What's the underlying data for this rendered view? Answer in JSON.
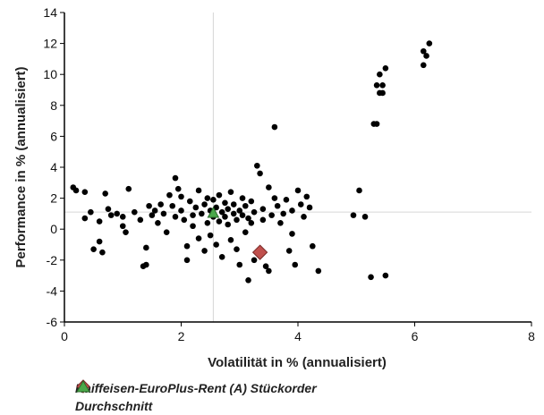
{
  "chart_data": {
    "type": "scatter",
    "xlabel": "Volatilität in % (annualisiert)",
    "ylabel": "Performance in % (annualisiert)",
    "xlim": [
      0,
      8
    ],
    "ylim": [
      -6,
      14
    ],
    "x_ticks": [
      0,
      2,
      4,
      6,
      8
    ],
    "y_ticks": [
      -6,
      -4,
      -2,
      0,
      2,
      4,
      6,
      8,
      10,
      12,
      14
    ],
    "reference_lines": {
      "x": 2.55,
      "y": 1.1
    },
    "colors": {
      "points": "#000000",
      "fund": "#c0504d",
      "average": "#4aa84a",
      "grid": "#d6d6d6"
    },
    "series": [
      {
        "name": "",
        "marker": "circle",
        "points": [
          [
            0.15,
            2.7
          ],
          [
            0.2,
            2.5
          ],
          [
            0.35,
            2.4
          ],
          [
            0.35,
            0.7
          ],
          [
            0.45,
            1.1
          ],
          [
            0.5,
            -1.3
          ],
          [
            0.6,
            -0.8
          ],
          [
            0.6,
            0.5
          ],
          [
            0.7,
            2.3
          ],
          [
            0.65,
            -1.5
          ],
          [
            0.75,
            1.3
          ],
          [
            0.8,
            0.9
          ],
          [
            0.9,
            1.0
          ],
          [
            1.0,
            0.8
          ],
          [
            1.0,
            0.2
          ],
          [
            1.05,
            -0.2
          ],
          [
            1.1,
            2.6
          ],
          [
            1.2,
            1.1
          ],
          [
            1.3,
            0.6
          ],
          [
            1.35,
            -2.4
          ],
          [
            1.4,
            -2.3
          ],
          [
            1.4,
            -1.2
          ],
          [
            1.45,
            1.5
          ],
          [
            1.5,
            0.9
          ],
          [
            1.55,
            1.2
          ],
          [
            1.6,
            0.4
          ],
          [
            1.65,
            1.6
          ],
          [
            1.7,
            1.0
          ],
          [
            1.75,
            -0.2
          ],
          [
            1.8,
            2.2
          ],
          [
            1.85,
            1.5
          ],
          [
            1.9,
            0.8
          ],
          [
            1.9,
            3.3
          ],
          [
            1.95,
            2.6
          ],
          [
            2.0,
            2.1
          ],
          [
            2.0,
            1.2
          ],
          [
            2.05,
            0.6
          ],
          [
            2.1,
            -1.1
          ],
          [
            2.1,
            -2.0
          ],
          [
            2.15,
            1.8
          ],
          [
            2.2,
            0.9
          ],
          [
            2.2,
            0.2
          ],
          [
            2.25,
            1.4
          ],
          [
            2.3,
            2.5
          ],
          [
            2.3,
            -0.6
          ],
          [
            2.35,
            1.0
          ],
          [
            2.4,
            1.6
          ],
          [
            2.4,
            -1.4
          ],
          [
            2.45,
            0.4
          ],
          [
            2.45,
            2.0
          ],
          [
            2.5,
            1.2
          ],
          [
            2.5,
            -0.4
          ],
          [
            2.55,
            0.8
          ],
          [
            2.55,
            1.9
          ],
          [
            2.6,
            1.4
          ],
          [
            2.6,
            -1.0
          ],
          [
            2.65,
            0.5
          ],
          [
            2.65,
            2.2
          ],
          [
            2.7,
            1.1
          ],
          [
            2.7,
            -1.8
          ],
          [
            2.75,
            0.8
          ],
          [
            2.75,
            1.7
          ],
          [
            2.8,
            1.3
          ],
          [
            2.8,
            0.3
          ],
          [
            2.85,
            -0.7
          ],
          [
            2.85,
            2.4
          ],
          [
            2.9,
            1.0
          ],
          [
            2.9,
            1.6
          ],
          [
            2.95,
            0.6
          ],
          [
            2.95,
            -1.3
          ],
          [
            3.0,
            1.2
          ],
          [
            3.0,
            -2.3
          ],
          [
            3.05,
            2.0
          ],
          [
            3.05,
            0.9
          ],
          [
            3.1,
            1.5
          ],
          [
            3.1,
            -0.2
          ],
          [
            3.15,
            0.7
          ],
          [
            3.15,
            -3.3
          ],
          [
            3.2,
            1.8
          ],
          [
            3.2,
            0.4
          ],
          [
            3.25,
            1.1
          ],
          [
            3.25,
            -2.0
          ],
          [
            3.3,
            4.1
          ],
          [
            3.35,
            3.6
          ],
          [
            3.4,
            1.3
          ],
          [
            3.4,
            0.6
          ],
          [
            3.45,
            -2.4
          ],
          [
            3.5,
            2.7
          ],
          [
            3.5,
            -2.7
          ],
          [
            3.55,
            0.9
          ],
          [
            3.6,
            6.6
          ],
          [
            3.6,
            2.0
          ],
          [
            3.65,
            1.5
          ],
          [
            3.7,
            0.4
          ],
          [
            3.75,
            1.0
          ],
          [
            3.8,
            1.9
          ],
          [
            3.85,
            -1.4
          ],
          [
            3.9,
            -0.3
          ],
          [
            3.9,
            1.2
          ],
          [
            3.95,
            -2.3
          ],
          [
            4.0,
            2.5
          ],
          [
            4.05,
            1.6
          ],
          [
            4.1,
            0.8
          ],
          [
            4.15,
            2.1
          ],
          [
            4.2,
            1.4
          ],
          [
            4.25,
            -1.1
          ],
          [
            4.35,
            -2.7
          ],
          [
            4.95,
            0.9
          ],
          [
            5.05,
            2.5
          ],
          [
            5.15,
            0.8
          ],
          [
            5.25,
            -3.1
          ],
          [
            5.3,
            6.8
          ],
          [
            5.35,
            6.8
          ],
          [
            5.35,
            9.3
          ],
          [
            5.4,
            8.8
          ],
          [
            5.4,
            10.0
          ],
          [
            5.45,
            9.3
          ],
          [
            5.45,
            8.8
          ],
          [
            5.5,
            10.4
          ],
          [
            5.5,
            -3.0
          ],
          [
            6.15,
            10.6
          ],
          [
            6.15,
            11.5
          ],
          [
            6.2,
            11.2
          ],
          [
            6.25,
            12.0
          ]
        ]
      },
      {
        "name": "Raiffeisen-EuroPlus-Rent (A) Stückorder",
        "marker": "diamond",
        "points": [
          [
            3.35,
            -1.5
          ]
        ]
      },
      {
        "name": "Durchschnitt",
        "marker": "triangle",
        "points": [
          [
            2.55,
            1.05
          ]
        ]
      }
    ],
    "legend": {
      "position": "bottom-left",
      "entries": [
        {
          "label": "Raiffeisen-EuroPlus-Rent (A) Stückorder",
          "marker": "diamond"
        },
        {
          "label": "Durchschnitt",
          "marker": "triangle"
        }
      ]
    }
  }
}
